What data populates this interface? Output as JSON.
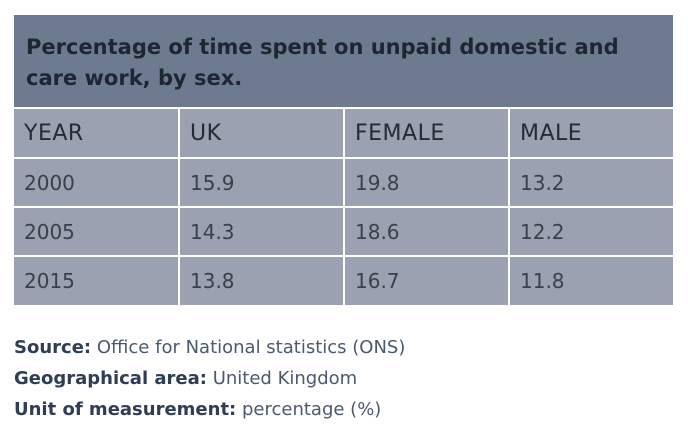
{
  "chart_data": {
    "type": "table",
    "title": "Percentage of time spent on unpaid domestic and care work, by sex.",
    "columns": [
      "YEAR",
      "UK",
      "FEMALE",
      "MALE"
    ],
    "rows": [
      [
        "2000",
        "15.9",
        "19.8",
        "13.2"
      ],
      [
        "2005",
        "14.3",
        "18.6",
        "12.2"
      ],
      [
        "2015",
        "13.8",
        "16.7",
        "11.8"
      ]
    ],
    "header_color": "#6e7a90",
    "cell_color": "#9aa1b0"
  },
  "footnotes": {
    "source_label": "Source:",
    "source_value": "Office for National statistics (ONS)",
    "area_label": "Geographical area:",
    "area_value": "United Kingdom",
    "unit_label": "Unit of measurement:",
    "unit_value": "percentage (%)"
  }
}
